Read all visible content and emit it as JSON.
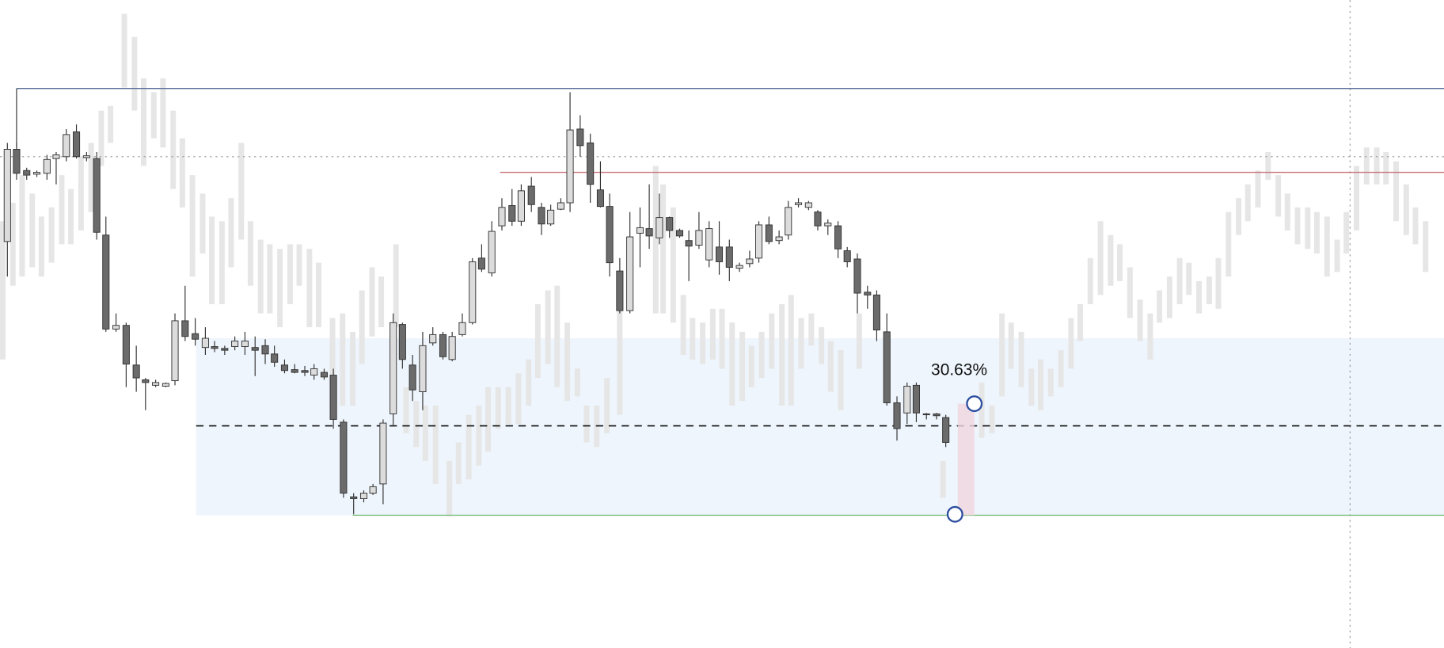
{
  "annotation": {
    "label": "30.63%"
  }
}
